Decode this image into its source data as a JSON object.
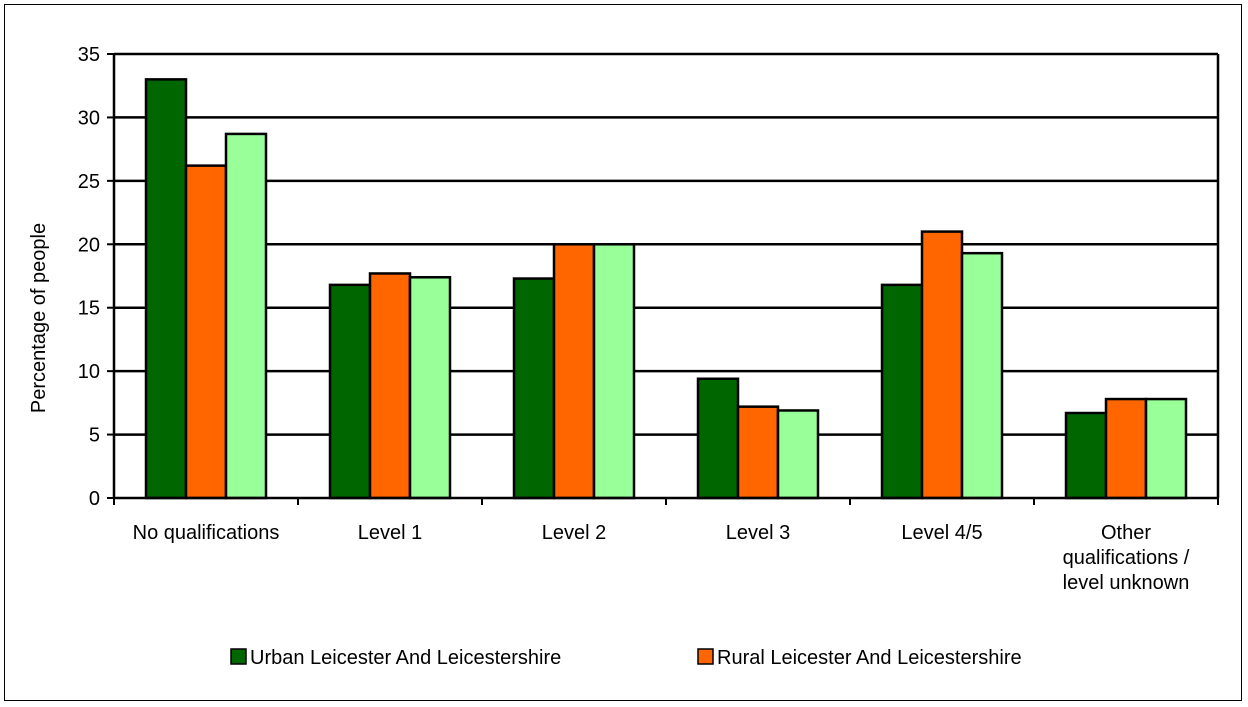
{
  "chart_data": {
    "type": "bar",
    "title": "",
    "xlabel": "",
    "ylabel": "Percentage of people",
    "ylim": [
      0,
      35
    ],
    "yticks": [
      0,
      5,
      10,
      15,
      20,
      25,
      30,
      35
    ],
    "grid": true,
    "legend_position": "bottom",
    "categories": [
      "No qualifications",
      "Level 1",
      "Level 2",
      "Level 3",
      "Level 4/5",
      "Other qualifications / level unknown"
    ],
    "category_label_lines": [
      [
        "No qualifications"
      ],
      [
        "Level 1"
      ],
      [
        "Level 2"
      ],
      [
        "Level 3"
      ],
      [
        "Level 4/5"
      ],
      [
        "Other",
        "qualifications /",
        "level unknown"
      ]
    ],
    "series": [
      {
        "name": "Urban Leicester And Leicestershire",
        "color": "#006600",
        "values": [
          33.0,
          16.8,
          17.3,
          9.4,
          16.8,
          6.7
        ]
      },
      {
        "name": "Rural Leicester And Leicestershire",
        "color": "#FF6600",
        "values": [
          26.2,
          17.7,
          20.0,
          7.2,
          21.0,
          7.8
        ]
      },
      {
        "name": "",
        "color": "#99FF99",
        "values": [
          28.7,
          17.4,
          20.0,
          6.9,
          19.3,
          7.8
        ]
      }
    ]
  }
}
